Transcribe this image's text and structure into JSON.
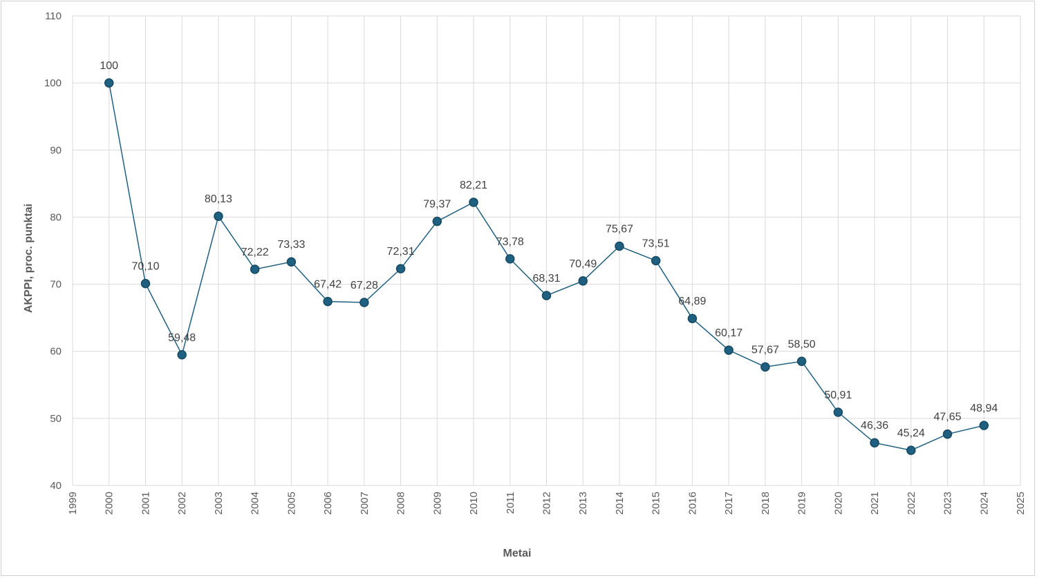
{
  "chart_data": {
    "type": "line",
    "title": "",
    "xlabel": "Metai",
    "ylabel": "AKPPI, proc. punktai",
    "xlim": [
      1999,
      2025
    ],
    "ylim": [
      40,
      110
    ],
    "x_ticks": [
      1999,
      2000,
      2001,
      2002,
      2003,
      2004,
      2005,
      2006,
      2007,
      2008,
      2009,
      2010,
      2011,
      2012,
      2013,
      2014,
      2015,
      2016,
      2017,
      2018,
      2019,
      2020,
      2021,
      2022,
      2023,
      2024,
      2025
    ],
    "y_ticks": [
      40,
      50,
      60,
      70,
      80,
      90,
      100,
      110
    ],
    "grid": true,
    "legend": "none",
    "colors": {
      "series": "#1f5f7f",
      "marker_stroke": "#164a63",
      "grid": "#d9d9d9"
    },
    "series": [
      {
        "x": [
          2000,
          2001,
          2002,
          2003,
          2004,
          2005,
          2006,
          2007,
          2008,
          2009,
          2010,
          2011,
          2012,
          2013,
          2014,
          2015,
          2016,
          2017,
          2018,
          2019,
          2020,
          2021,
          2022,
          2023,
          2024
        ],
        "values": [
          100,
          70.1,
          59.48,
          80.13,
          72.22,
          73.33,
          67.42,
          67.28,
          72.31,
          79.37,
          82.21,
          73.78,
          68.31,
          70.49,
          75.67,
          73.51,
          64.89,
          60.17,
          57.67,
          58.5,
          50.91,
          46.36,
          45.24,
          47.65,
          48.94
        ],
        "labels": [
          "100",
          "70,10",
          "59,48",
          "80,13",
          "72,22",
          "73,33",
          "67,42",
          "67,28",
          "72,31",
          "79,37",
          "82,21",
          "73,78",
          "68,31",
          "70,49",
          "75,67",
          "73,51",
          "64,89",
          "60,17",
          "57,67",
          "58,50",
          "50,91",
          "46,36",
          "45,24",
          "47,65",
          "48,94"
        ]
      }
    ]
  }
}
